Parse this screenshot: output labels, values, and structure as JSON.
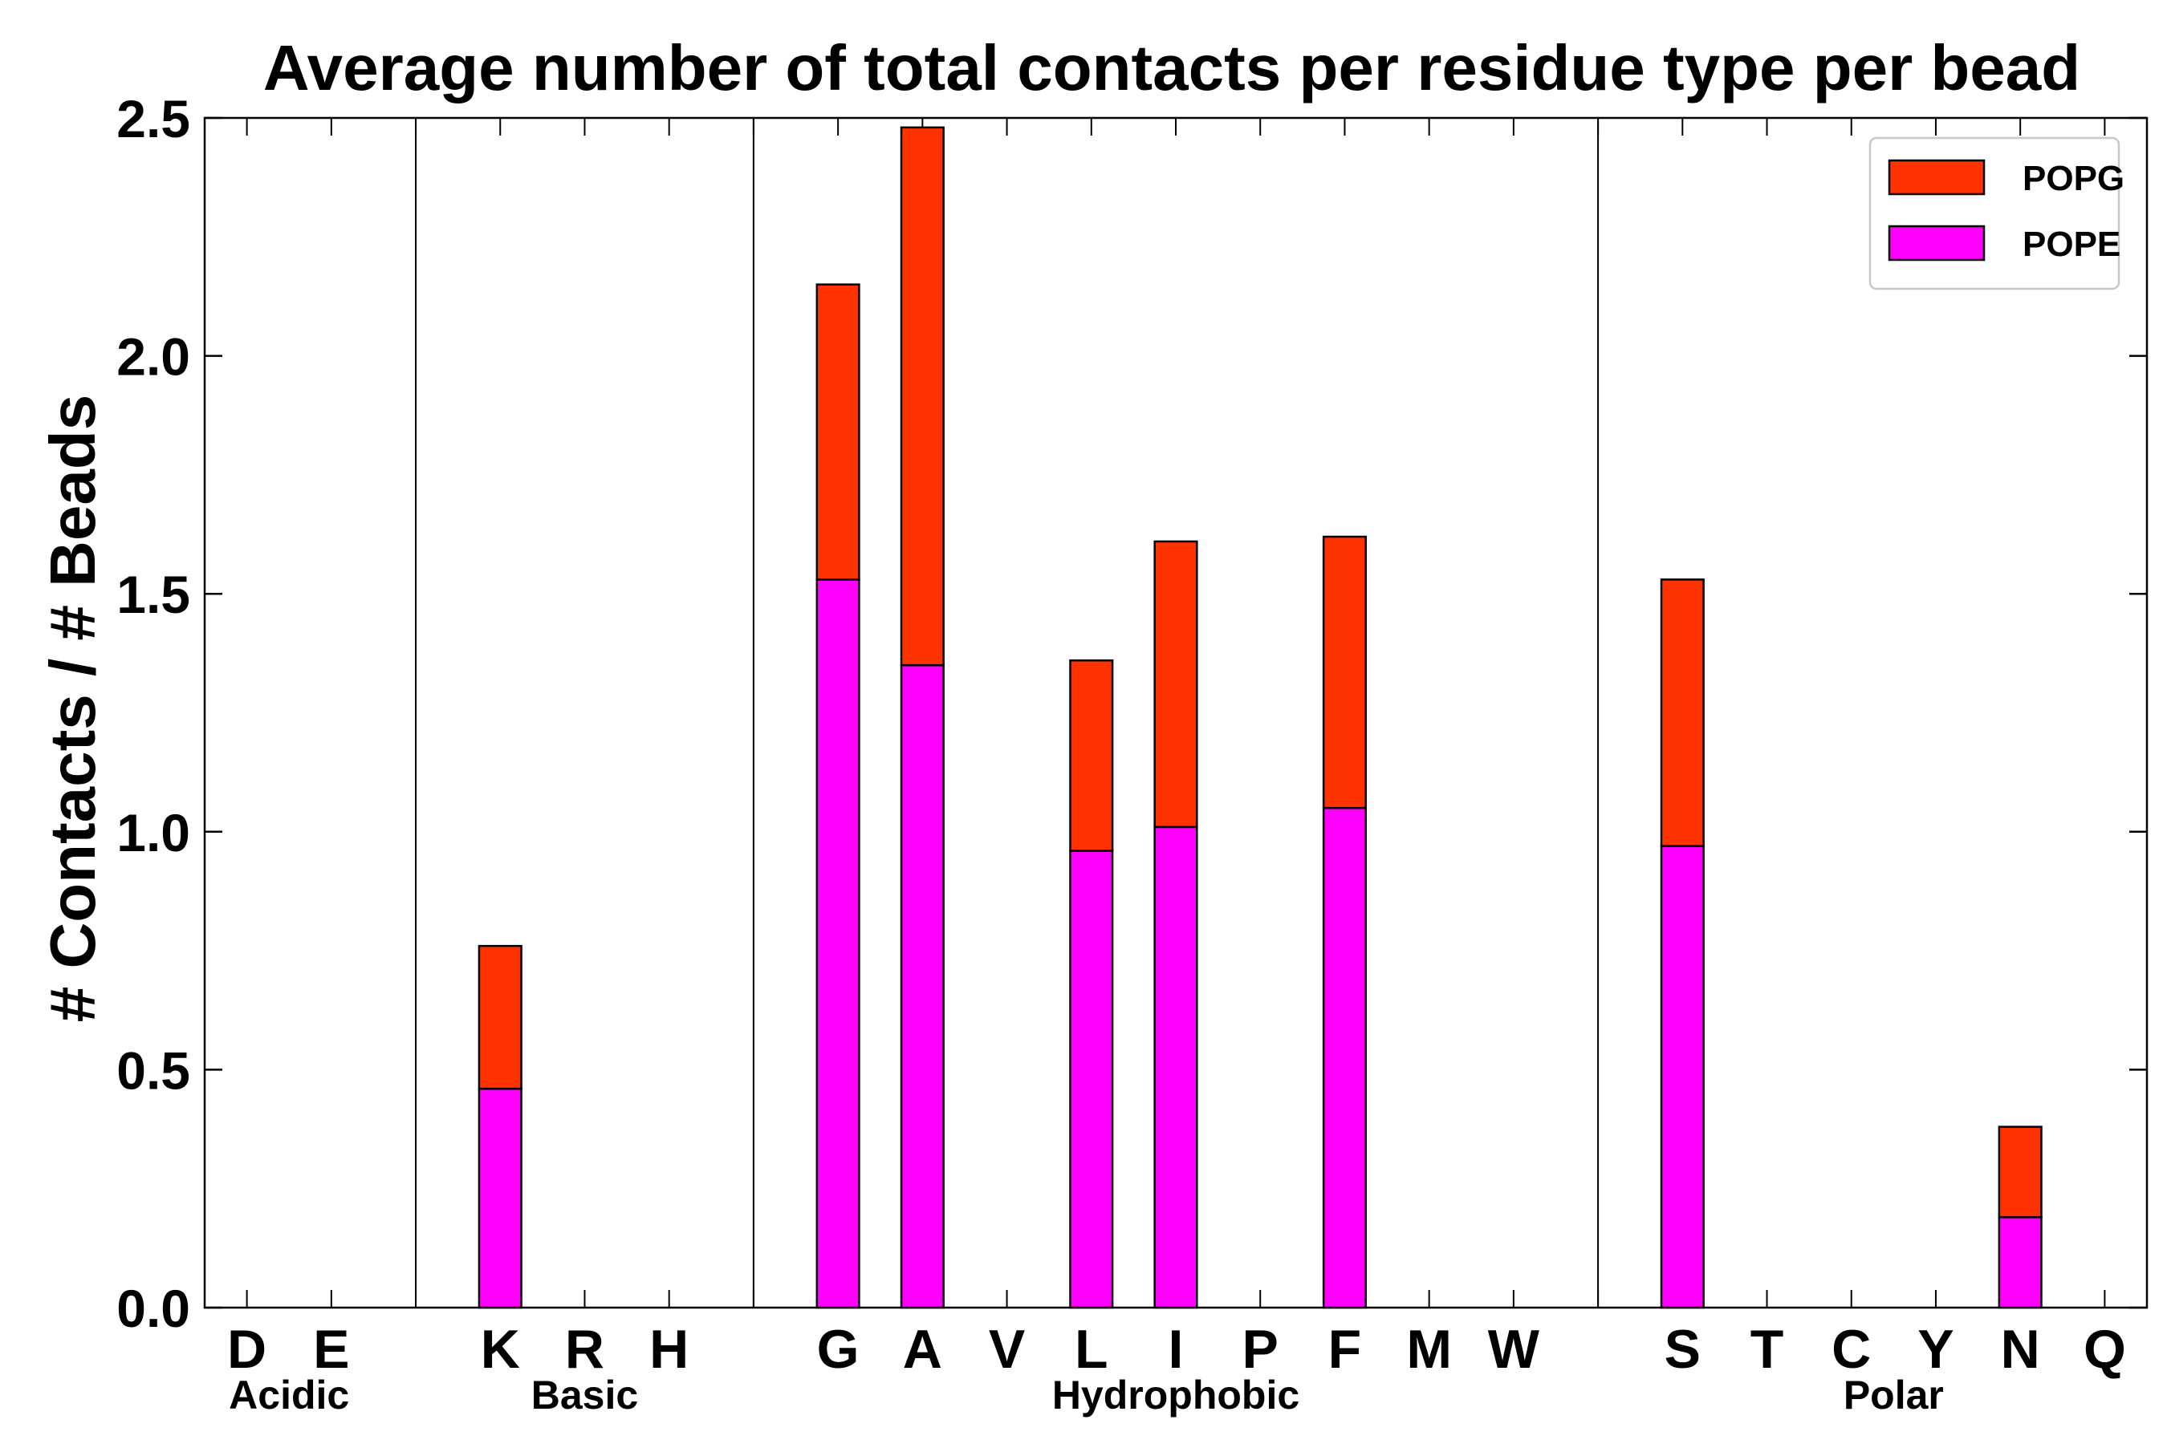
{
  "chart_data": {
    "type": "bar",
    "stacked": true,
    "title": "Average number of total contacts per residue type per bead",
    "xlabel": "",
    "ylabel": "# Contacts / # Beads",
    "ylim": [
      0,
      2.5
    ],
    "yticks": [
      "0.0",
      "0.5",
      "1.0",
      "1.5",
      "2.0",
      "2.5"
    ],
    "grid": false,
    "legend_position": "top-right",
    "categories": [
      "D",
      "E",
      "",
      "K",
      "R",
      "H",
      "",
      "G",
      "A",
      "V",
      "L",
      "I",
      "P",
      "F",
      "M",
      "W",
      "",
      "S",
      "T",
      "C",
      "Y",
      "N",
      "Q"
    ],
    "groups": [
      {
        "label": "Acidic",
        "start": 0,
        "end": 1
      },
      {
        "label": "Basic",
        "start": 3,
        "end": 5
      },
      {
        "label": "Hydrophobic",
        "start": 7,
        "end": 15
      },
      {
        "label": "Polar",
        "start": 17,
        "end": 22
      }
    ],
    "separators_after": [
      2,
      6,
      16
    ],
    "series": [
      {
        "name": "POPE",
        "color": "#ff00ff",
        "values": [
          0,
          0,
          0,
          0.46,
          0,
          0,
          0,
          1.53,
          1.35,
          0,
          0.96,
          1.01,
          0,
          1.05,
          0,
          0,
          0,
          0.97,
          0,
          0,
          0,
          0.19,
          0
        ]
      },
      {
        "name": "POPG",
        "color": "#ff3300",
        "values": [
          0,
          0,
          0,
          0.3,
          0,
          0,
          0,
          0.62,
          1.13,
          0,
          0.4,
          0.6,
          0,
          0.57,
          0,
          0,
          0,
          0.56,
          0,
          0,
          0,
          0.19,
          0
        ]
      }
    ],
    "legend": [
      {
        "label": "POPG",
        "color": "#ff3300"
      },
      {
        "label": "POPE",
        "color": "#ff00ff"
      }
    ]
  }
}
